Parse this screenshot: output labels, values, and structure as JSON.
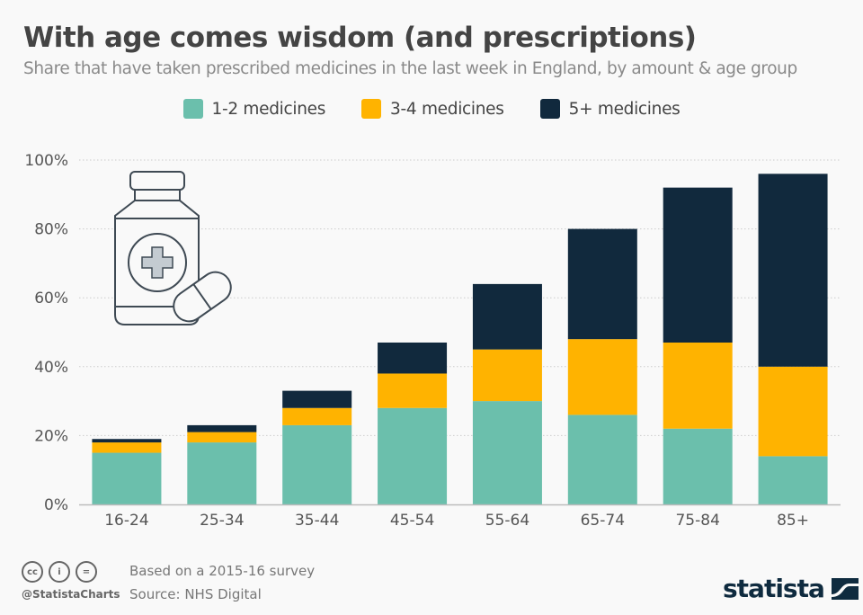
{
  "title": "With age comes wisdom (and prescriptions)",
  "subtitle": "Share that have taken prescribed medicines in the last week in England, by amount & age group",
  "footer": {
    "note": "Based on a 2015-16 survey",
    "source": "Source: NHS Digital",
    "handle": "@StatistaCharts",
    "logo": "statista",
    "license_icons": [
      "cc-icon",
      "attribution-icon",
      "no-derivatives-icon"
    ]
  },
  "illustration": "pill-bottle-icon",
  "colors": {
    "teal": "#6bbfac",
    "yellow": "#ffb300",
    "navy": "#11293d",
    "grid": "#cccccc",
    "axis": "#bbbbbb"
  },
  "chart_data": {
    "type": "bar",
    "stacked": true,
    "title": "With age comes wisdom (and prescriptions)",
    "subtitle": "Share that have taken prescribed medicines in the last week in England, by amount & age group",
    "xlabel": "",
    "ylabel": "",
    "categories": [
      "16-24",
      "25-34",
      "35-44",
      "45-54",
      "55-64",
      "65-74",
      "75-84",
      "85+"
    ],
    "series": [
      {
        "name": "1-2 medicines",
        "color": "#6bbfac",
        "values": [
          15,
          18,
          23,
          28,
          30,
          26,
          22,
          14
        ]
      },
      {
        "name": "3-4 medicines",
        "color": "#ffb300",
        "values": [
          3,
          3,
          5,
          10,
          15,
          22,
          25,
          26
        ]
      },
      {
        "name": "5+ medicines",
        "color": "#11293d",
        "values": [
          1,
          2,
          5,
          9,
          19,
          32,
          45,
          56
        ]
      }
    ],
    "ylim": [
      0,
      100
    ],
    "yticks": [
      0,
      20,
      40,
      60,
      80,
      100
    ],
    "ytick_labels": [
      "0%",
      "20%",
      "40%",
      "60%",
      "80%",
      "100%"
    ],
    "grid": true,
    "legend": "top-center"
  }
}
